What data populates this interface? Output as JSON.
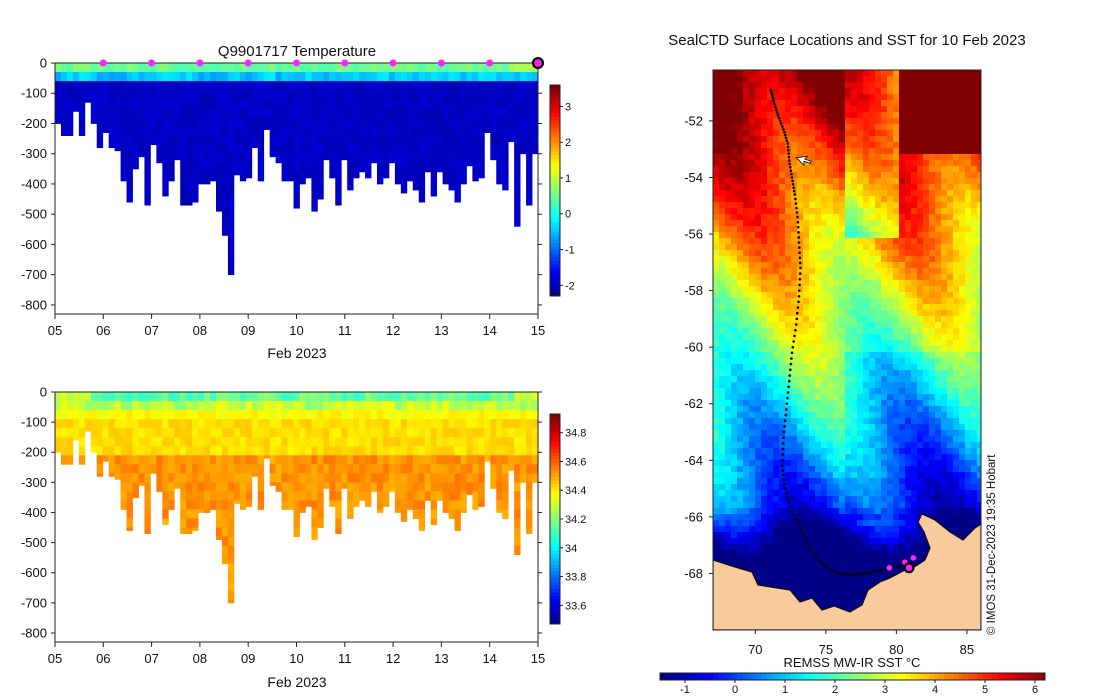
{
  "chart_data": [
    {
      "type": "heatmap",
      "title": "Q9901717  Temperature",
      "variable": "temperature",
      "xlabel": "Feb 2023",
      "ylabel": "",
      "x_tick_labels": [
        "05",
        "06",
        "07",
        "08",
        "09",
        "10",
        "11",
        "12",
        "13",
        "14",
        "15"
      ],
      "x_range_days": [
        5,
        15
      ],
      "ylim": [
        -830,
        0
      ],
      "y_ticks": [
        0,
        -100,
        -200,
        -300,
        -400,
        -500,
        -600,
        -700,
        -800
      ],
      "colorbar": {
        "range": [
          -2.3,
          3.6
        ],
        "ticks": [
          3,
          2,
          1,
          0,
          -1,
          -2
        ],
        "tick_labels": [
          "3",
          "2",
          "1",
          "0",
          "-1",
          "-2"
        ]
      },
      "surface_markers_days": [
        6,
        7,
        8,
        9,
        10,
        11,
        12,
        13,
        14
      ],
      "latest_marker_day": 15,
      "profile_max_depth_m": [
        200,
        240,
        240,
        160,
        240,
        130,
        200,
        280,
        230,
        280,
        290,
        390,
        460,
        350,
        310,
        470,
        270,
        330,
        440,
        390,
        320,
        470,
        470,
        460,
        400,
        400,
        390,
        490,
        570,
        700,
        370,
        390,
        380,
        280,
        390,
        220,
        310,
        330,
        390,
        390,
        480,
        400,
        380,
        490,
        450,
        320,
        380,
        470,
        320,
        420,
        380,
        360,
        380,
        330,
        400,
        380,
        330,
        400,
        430,
        390,
        420,
        460,
        360,
        440,
        360,
        400,
        420,
        460,
        400,
        340,
        390,
        380,
        230,
        320,
        400,
        420,
        260,
        540,
        300,
        470,
        300
      ]
    },
    {
      "type": "heatmap",
      "title": "",
      "variable": "salinity",
      "xlabel": "Feb 2023",
      "ylabel": "",
      "x_tick_labels": [
        "05",
        "06",
        "07",
        "08",
        "09",
        "10",
        "11",
        "12",
        "13",
        "14",
        "15"
      ],
      "x_range_days": [
        5,
        15
      ],
      "ylim": [
        -830,
        0
      ],
      "y_ticks": [
        0,
        -100,
        -200,
        -300,
        -400,
        -500,
        -600,
        -700,
        -800
      ],
      "colorbar": {
        "range": [
          33.47,
          34.93
        ],
        "ticks": [
          34.8,
          34.6,
          34.4,
          34.2,
          34,
          33.8,
          33.6
        ],
        "tick_labels": [
          "34.8",
          "34.6",
          "34.4",
          "34.2",
          "34",
          "33.8",
          "33.6"
        ]
      }
    },
    {
      "type": "map",
      "title": "SealCTD Surface Locations and SST for 10 Feb 2023",
      "xlabel": "",
      "lon_range": [
        67,
        86
      ],
      "lat_range": [
        -70,
        -50.2
      ],
      "x_tick_labels": [
        "70",
        "75",
        "80",
        "85"
      ],
      "y_tick_labels": [
        "-52",
        "-54",
        "-56",
        "-58",
        "-60",
        "-62",
        "-64",
        "-66",
        "-68"
      ],
      "colorbar_label": "REMSS MW-IR SST °C",
      "colorbar": {
        "range": [
          -1.5,
          6.2
        ],
        "ticks": [
          -1,
          0,
          1,
          2,
          3,
          4,
          5,
          6
        ],
        "tick_labels": [
          "-1",
          "0",
          "1",
          "2",
          "3",
          "4",
          "5",
          "6"
        ]
      },
      "track_lon_lat": [
        [
          71.1,
          -50.9
        ],
        [
          71.3,
          -51.3
        ],
        [
          71.6,
          -51.8
        ],
        [
          72,
          -52.3
        ],
        [
          72.3,
          -52.8
        ],
        [
          72.4,
          -53.4
        ],
        [
          72.6,
          -54
        ],
        [
          72.8,
          -54.6
        ],
        [
          73,
          -55.4
        ],
        [
          73.1,
          -56.3
        ],
        [
          73.2,
          -57.2
        ],
        [
          73.1,
          -58.2
        ],
        [
          72.9,
          -59.2
        ],
        [
          72.6,
          -60.2
        ],
        [
          72.4,
          -61.2
        ],
        [
          72.2,
          -62.2
        ],
        [
          72,
          -63.2
        ],
        [
          71.9,
          -64.2
        ],
        [
          72.1,
          -65
        ],
        [
          72.6,
          -65.8
        ],
        [
          73.3,
          -66.5
        ],
        [
          74,
          -67.2
        ],
        [
          74.8,
          -67.7
        ],
        [
          75.8,
          -68
        ],
        [
          76.8,
          -68.05
        ],
        [
          77.8,
          -68
        ],
        [
          78.8,
          -67.9
        ],
        [
          79.7,
          -67.8
        ],
        [
          80.4,
          -67.7
        ],
        [
          80.9,
          -67.5
        ]
      ],
      "recent_positions_lon_lat": [
        [
          79.5,
          -67.8
        ],
        [
          80.6,
          -67.6
        ],
        [
          81.2,
          -67.45
        ]
      ],
      "current_position_lon_lat": [
        80.9,
        -67.8
      ],
      "cursor_lon_lat": [
        72.9,
        -53.3
      ],
      "side_note": "© IMOS 31-Dec-2023 19:35 Hobart"
    }
  ],
  "colors": {
    "land": "#f9cb9c",
    "marker": "#ff22ff",
    "track": "#000000"
  }
}
